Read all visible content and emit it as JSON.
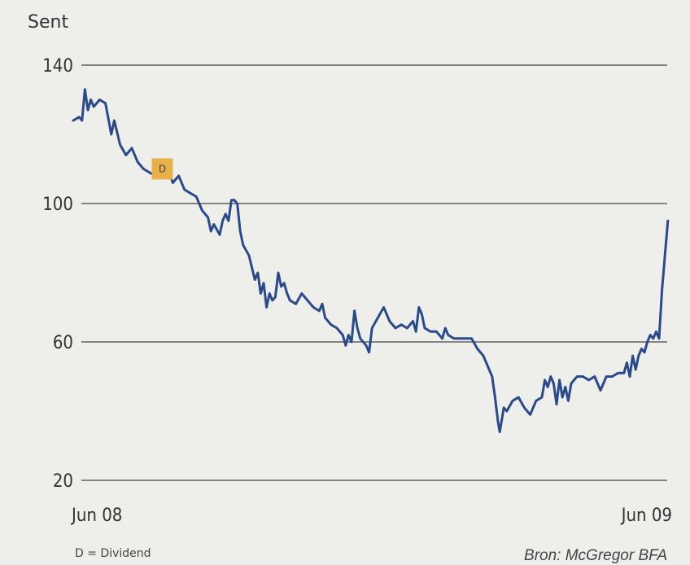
{
  "chart_data": {
    "type": "line",
    "unit_label": "Sent",
    "y_ticks": [
      "140",
      "100",
      "60",
      "20"
    ],
    "x_ticks": [
      "Jun 08",
      "Jun 09"
    ],
    "ylim": [
      20,
      140
    ],
    "grid": true,
    "marker": {
      "label": "D",
      "x": 0.152,
      "y": 110
    },
    "legend_note": "D = Dividend",
    "source": "Bron: McGregor BFA",
    "line_color": "#2b4a8c",
    "marker_color": "#e8b04a",
    "series": [
      {
        "points": [
          [
            0.0,
            124
          ],
          [
            0.01,
            125
          ],
          [
            0.015,
            124
          ],
          [
            0.02,
            133
          ],
          [
            0.025,
            127
          ],
          [
            0.03,
            130
          ],
          [
            0.035,
            128
          ],
          [
            0.045,
            130
          ],
          [
            0.055,
            129
          ],
          [
            0.065,
            120
          ],
          [
            0.07,
            124
          ],
          [
            0.08,
            117
          ],
          [
            0.09,
            114
          ],
          [
            0.1,
            116
          ],
          [
            0.11,
            112
          ],
          [
            0.12,
            110
          ],
          [
            0.13,
            109
          ],
          [
            0.14,
            108
          ],
          [
            0.15,
            110
          ],
          [
            0.16,
            111
          ],
          [
            0.17,
            106
          ],
          [
            0.18,
            108
          ],
          [
            0.19,
            104
          ],
          [
            0.2,
            103
          ],
          [
            0.21,
            102
          ],
          [
            0.22,
            98
          ],
          [
            0.23,
            96
          ],
          [
            0.235,
            92
          ],
          [
            0.24,
            94
          ],
          [
            0.25,
            91
          ],
          [
            0.255,
            95
          ],
          [
            0.26,
            97
          ],
          [
            0.265,
            95
          ],
          [
            0.27,
            101
          ],
          [
            0.275,
            101
          ],
          [
            0.28,
            100
          ],
          [
            0.285,
            92
          ],
          [
            0.29,
            88
          ],
          [
            0.3,
            85
          ],
          [
            0.31,
            78
          ],
          [
            0.315,
            80
          ],
          [
            0.32,
            74
          ],
          [
            0.325,
            77
          ],
          [
            0.33,
            70
          ],
          [
            0.335,
            74
          ],
          [
            0.34,
            72
          ],
          [
            0.345,
            73
          ],
          [
            0.35,
            80
          ],
          [
            0.355,
            76
          ],
          [
            0.36,
            77
          ],
          [
            0.365,
            74
          ],
          [
            0.37,
            72
          ],
          [
            0.38,
            71
          ],
          [
            0.39,
            74
          ],
          [
            0.4,
            72
          ],
          [
            0.41,
            70
          ],
          [
            0.42,
            69
          ],
          [
            0.425,
            71
          ],
          [
            0.43,
            67
          ],
          [
            0.44,
            65
          ],
          [
            0.45,
            64
          ],
          [
            0.46,
            62
          ],
          [
            0.465,
            59
          ],
          [
            0.47,
            62
          ],
          [
            0.475,
            60
          ],
          [
            0.48,
            69
          ],
          [
            0.485,
            64
          ],
          [
            0.49,
            61
          ],
          [
            0.5,
            59
          ],
          [
            0.505,
            57
          ],
          [
            0.51,
            64
          ],
          [
            0.52,
            67
          ],
          [
            0.53,
            70
          ],
          [
            0.54,
            66
          ],
          [
            0.55,
            64
          ],
          [
            0.56,
            65
          ],
          [
            0.57,
            64
          ],
          [
            0.58,
            66
          ],
          [
            0.585,
            63
          ],
          [
            0.59,
            70
          ],
          [
            0.595,
            68
          ],
          [
            0.6,
            64
          ],
          [
            0.61,
            63
          ],
          [
            0.62,
            63
          ],
          [
            0.63,
            61
          ],
          [
            0.635,
            64
          ],
          [
            0.64,
            62
          ],
          [
            0.65,
            61
          ],
          [
            0.66,
            61
          ],
          [
            0.68,
            61
          ],
          [
            0.69,
            58
          ],
          [
            0.7,
            56
          ],
          [
            0.71,
            52
          ],
          [
            0.715,
            50
          ],
          [
            0.72,
            44
          ],
          [
            0.725,
            37
          ],
          [
            0.728,
            34
          ],
          [
            0.735,
            41
          ],
          [
            0.74,
            40
          ],
          [
            0.75,
            43
          ],
          [
            0.76,
            44
          ],
          [
            0.77,
            41
          ],
          [
            0.78,
            39
          ],
          [
            0.79,
            43
          ],
          [
            0.8,
            44
          ],
          [
            0.805,
            49
          ],
          [
            0.81,
            47
          ],
          [
            0.815,
            50
          ],
          [
            0.82,
            48
          ],
          [
            0.825,
            42
          ],
          [
            0.83,
            49
          ],
          [
            0.835,
            44
          ],
          [
            0.84,
            47
          ],
          [
            0.845,
            43
          ],
          [
            0.85,
            48
          ],
          [
            0.86,
            50
          ],
          [
            0.87,
            50
          ],
          [
            0.88,
            49
          ],
          [
            0.89,
            50
          ],
          [
            0.9,
            46
          ],
          [
            0.91,
            50
          ],
          [
            0.92,
            50
          ],
          [
            0.93,
            51
          ],
          [
            0.935,
            51
          ],
          [
            0.94,
            51
          ],
          [
            0.945,
            54
          ],
          [
            0.95,
            50
          ],
          [
            0.955,
            56
          ],
          [
            0.96,
            52
          ],
          [
            0.965,
            56
          ],
          [
            0.97,
            58
          ],
          [
            0.975,
            57
          ],
          [
            0.98,
            60
          ],
          [
            0.985,
            62
          ],
          [
            0.99,
            61
          ],
          [
            0.995,
            63
          ],
          [
            1.0,
            61
          ],
          [
            1.005,
            75
          ],
          [
            1.01,
            85
          ],
          [
            1.015,
            95
          ]
        ]
      }
    ]
  }
}
